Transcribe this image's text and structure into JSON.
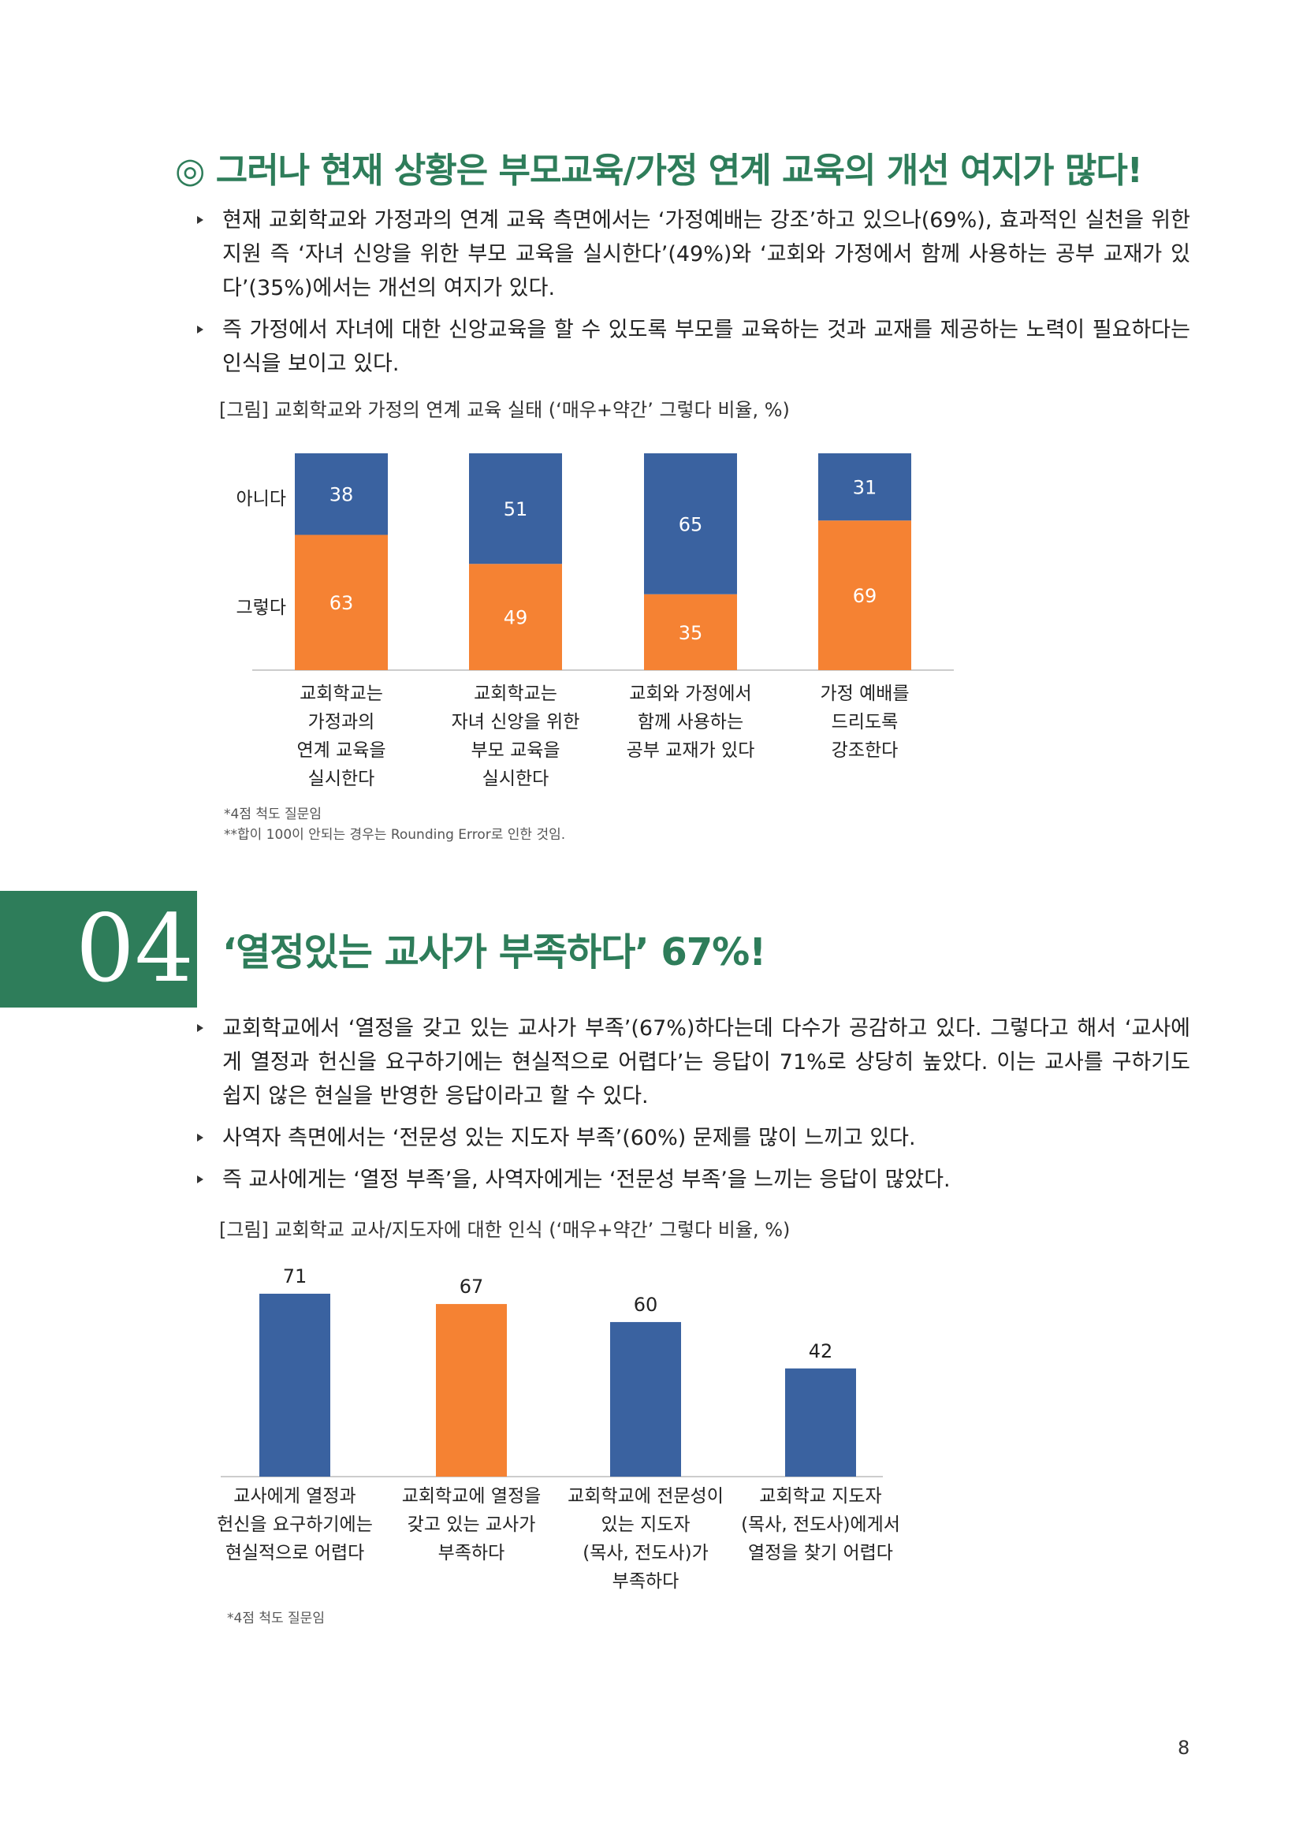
{
  "section1": {
    "heading": "◎ 그러나 현재 상황은 부모교육/가정 연계 교육의 개선 여지가 많다!",
    "bullets": [
      "현재 교회학교와 가정과의 연계 교육 측면에서는 ‘가정예배는 강조’하고 있으나(69%), 효과적인 실천을 위한 지원 즉 ‘자녀 신앙을 위한 부모 교육을 실시한다’(49%)와 ‘교회와 가정에서 함께 사용하는 공부 교재가 있다’(35%)에서는 개선의 여지가 있다.",
      "즉 가정에서 자녀에 대한 신앙교육을 할 수 있도록 부모를 교육하는 것과 교재를 제공하는 노력이 필요하다는 인식을 보이고 있다."
    ],
    "figure_caption": "[그림] 교회학교와 가정의 연계 교육 실태 (‘매우+약간’ 그렇다 비율, %)",
    "notes": [
      "*4점 척도 질문임",
      "**합이 100이 안되는 경우는 Rounding Error로 인한 것임."
    ]
  },
  "section2": {
    "number": "04",
    "heading": "‘열정있는 교사가 부족하다’ 67%!",
    "bullets": [
      "교회학교에서 ‘열정을 갖고 있는 교사가 부족’(67%)하다는데 다수가 공감하고 있다. 그렇다고 해서 ‘교사에게 열정과 헌신을 요구하기에는 현실적으로 어렵다’는 응답이 71%로 상당히 높았다. 이는 교사를 구하기도 쉽지 않은 현실을 반영한 응답이라고 할 수 있다.",
      "사역자 측면에서는 ‘전문성 있는 지도자 부족’(60%) 문제를 많이 느끼고 있다.",
      "즉 교사에게는 ‘열정 부족’을, 사역자에게는 ‘전문성 부족’을 느끼는 응답이 많았다."
    ],
    "figure_caption": "[그림] 교회학교 교사/지도자에 대한 인식 (‘매우+약간’ 그렇다 비율, %)",
    "notes": [
      "*4점 척도 질문임"
    ]
  },
  "page_number": "8",
  "colors": {
    "green": "#2e7d5a",
    "blue": "#3a62a0",
    "orange": "#f58233"
  },
  "chart_data": [
    {
      "type": "bar",
      "stacked": true,
      "categories": [
        [
          "교회학교는",
          "가정과의",
          "연계 교육을",
          "실시한다"
        ],
        [
          "교회학교는",
          "자녀 신앙을 위한",
          "부모 교육을",
          "실시한다"
        ],
        [
          "교회와 가정에서",
          "함께 사용하는",
          "공부 교재가 있다"
        ],
        [
          "가정 예배를",
          "드리도록",
          "강조한다"
        ]
      ],
      "series": [
        {
          "name": "그렇다",
          "values": [
            63,
            49,
            35,
            69
          ]
        },
        {
          "name": "아니다",
          "values": [
            38,
            51,
            65,
            31
          ]
        }
      ],
      "legend": "left",
      "grid": false
    },
    {
      "type": "bar",
      "categories": [
        [
          "교사에게 열정과",
          "헌신을 요구하기에는",
          "현실적으로 어렵다"
        ],
        [
          "교회학교에 열정을",
          "갖고 있는 교사가",
          "부족하다"
        ],
        [
          "교회학교에 전문성이",
          "있는 지도자",
          "(목사, 전도사)가",
          "부족하다"
        ],
        [
          "교회학교 지도자",
          "(목사, 전도사)에게서",
          "열정을 찾기 어렵다"
        ]
      ],
      "values": [
        71,
        67,
        60,
        42
      ],
      "highlight_index": 1,
      "grid": false
    }
  ]
}
